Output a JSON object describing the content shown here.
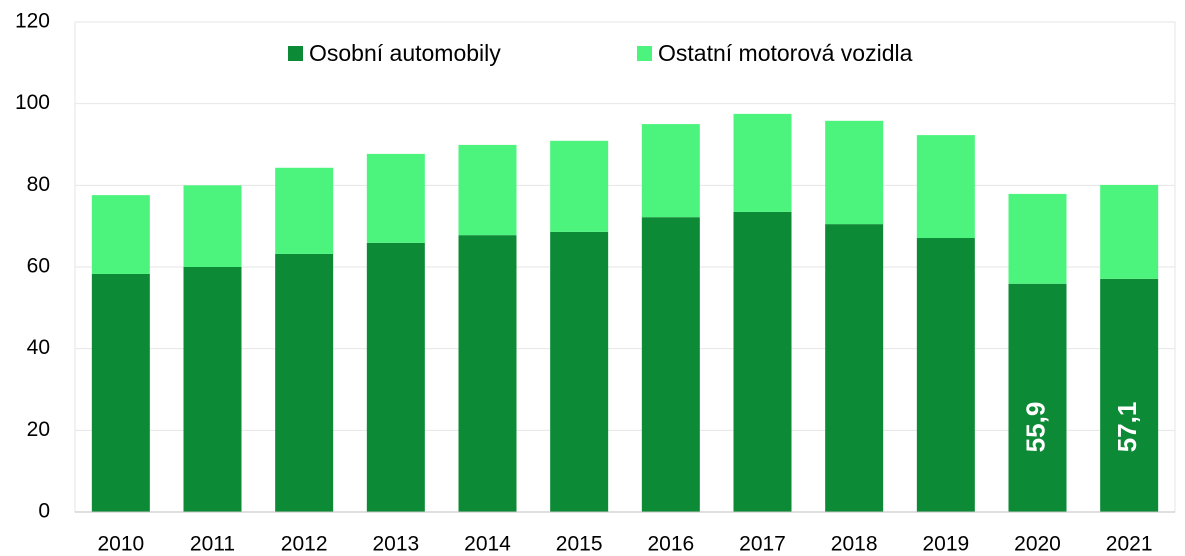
{
  "chart_data": {
    "type": "stacked_bar",
    "categories": [
      "2010",
      "2011",
      "2012",
      "2013",
      "2014",
      "2015",
      "2016",
      "2017",
      "2018",
      "2019",
      "2020",
      "2021"
    ],
    "series": [
      {
        "name": "Osobní automobily",
        "color": "#0d8a36",
        "values": [
          58.3,
          60.0,
          63.2,
          65.9,
          67.8,
          68.6,
          72.2,
          73.5,
          70.5,
          67.1,
          55.9,
          57.1
        ],
        "value_labels": [
          null,
          null,
          null,
          null,
          null,
          null,
          null,
          null,
          null,
          null,
          "55,9",
          "57,1"
        ]
      },
      {
        "name": "Ostatní motorová vozidla",
        "color": "#4cf47d",
        "values": [
          19.3,
          20.0,
          21.1,
          21.8,
          22.1,
          22.3,
          22.8,
          24.0,
          25.3,
          25.2,
          22.0,
          23.0
        ]
      }
    ],
    "ylim": [
      0,
      120
    ],
    "yticks": [
      0,
      20,
      40,
      60,
      80,
      100,
      120
    ],
    "grid": true,
    "legend": "top"
  }
}
